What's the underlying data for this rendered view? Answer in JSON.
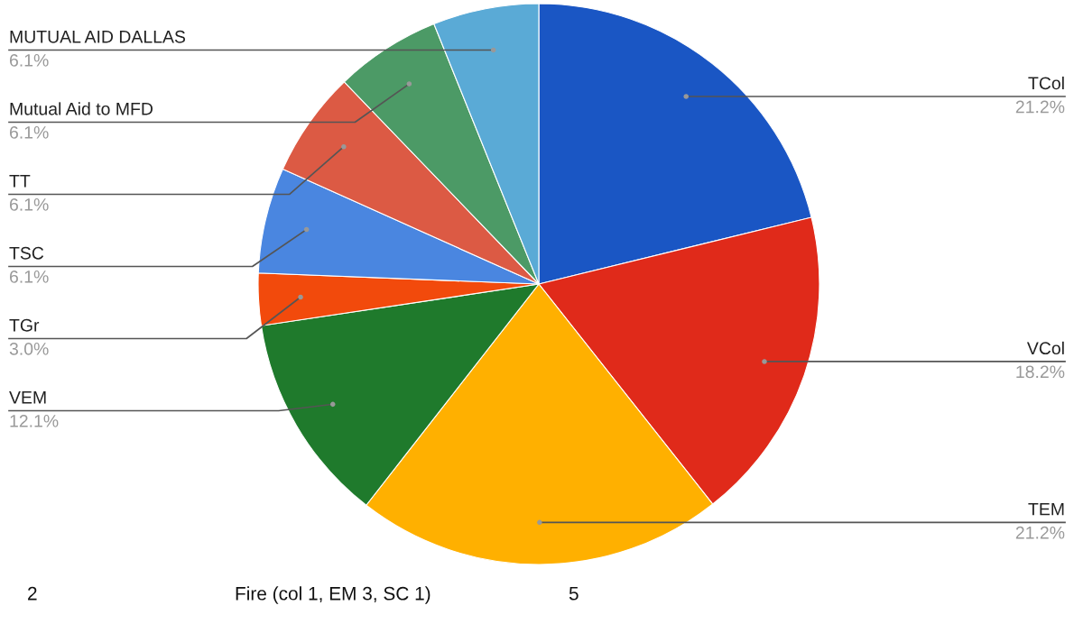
{
  "chart_data": {
    "type": "pie",
    "categories": [
      "TCol",
      "VCol",
      "TEM",
      "VEM",
      "TGr",
      "TSC",
      "TT",
      "Mutual Aid to MFD",
      "MUTUAL AID DALLAS"
    ],
    "values": [
      21.2,
      18.2,
      21.2,
      12.1,
      3.0,
      6.1,
      6.1,
      6.1,
      6.1
    ],
    "value_labels": [
      "21.2%",
      "18.2%",
      "21.2%",
      "12.1%",
      "3.0%",
      "6.1%",
      "6.1%",
      "6.1%",
      "6.1%"
    ],
    "colors": [
      "#1a56c4",
      "#e02a1a",
      "#ffb000",
      "#1f7a2c",
      "#f24a0c",
      "#4a86e0",
      "#dc5a44",
      "#4c9a66",
      "#5aaad6"
    ],
    "legend": false,
    "annotations": [
      "2",
      "Fire (col 1, EM 3, SC 1)",
      "5"
    ]
  }
}
